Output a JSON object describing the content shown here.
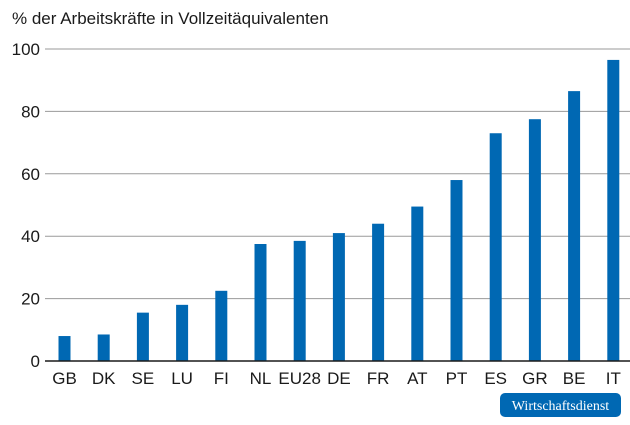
{
  "chart_data": {
    "type": "bar",
    "title": "% der Arbeitskräfte in Vollzeitäquivalenten",
    "xlabel": "",
    "ylabel": "",
    "categories": [
      "GB",
      "DK",
      "SE",
      "LU",
      "FI",
      "NL",
      "EU28",
      "DE",
      "FR",
      "AT",
      "PT",
      "ES",
      "GR",
      "BE",
      "IT"
    ],
    "values": [
      8,
      8.5,
      15.5,
      18,
      22.5,
      37.5,
      38.5,
      41,
      44,
      49.5,
      58,
      73,
      77.5,
      86.5,
      96.5
    ],
    "ylim": [
      0,
      100
    ],
    "yticks": [
      0,
      20,
      40,
      60,
      80,
      100
    ],
    "grid": true,
    "legend": "none",
    "bar_color": "#0068b3",
    "grid_color": "#9a9a9a",
    "axis_color": "#1a1a1a"
  },
  "badge": {
    "label": "Wirtschaftsdienst",
    "color": "#0068b3"
  }
}
